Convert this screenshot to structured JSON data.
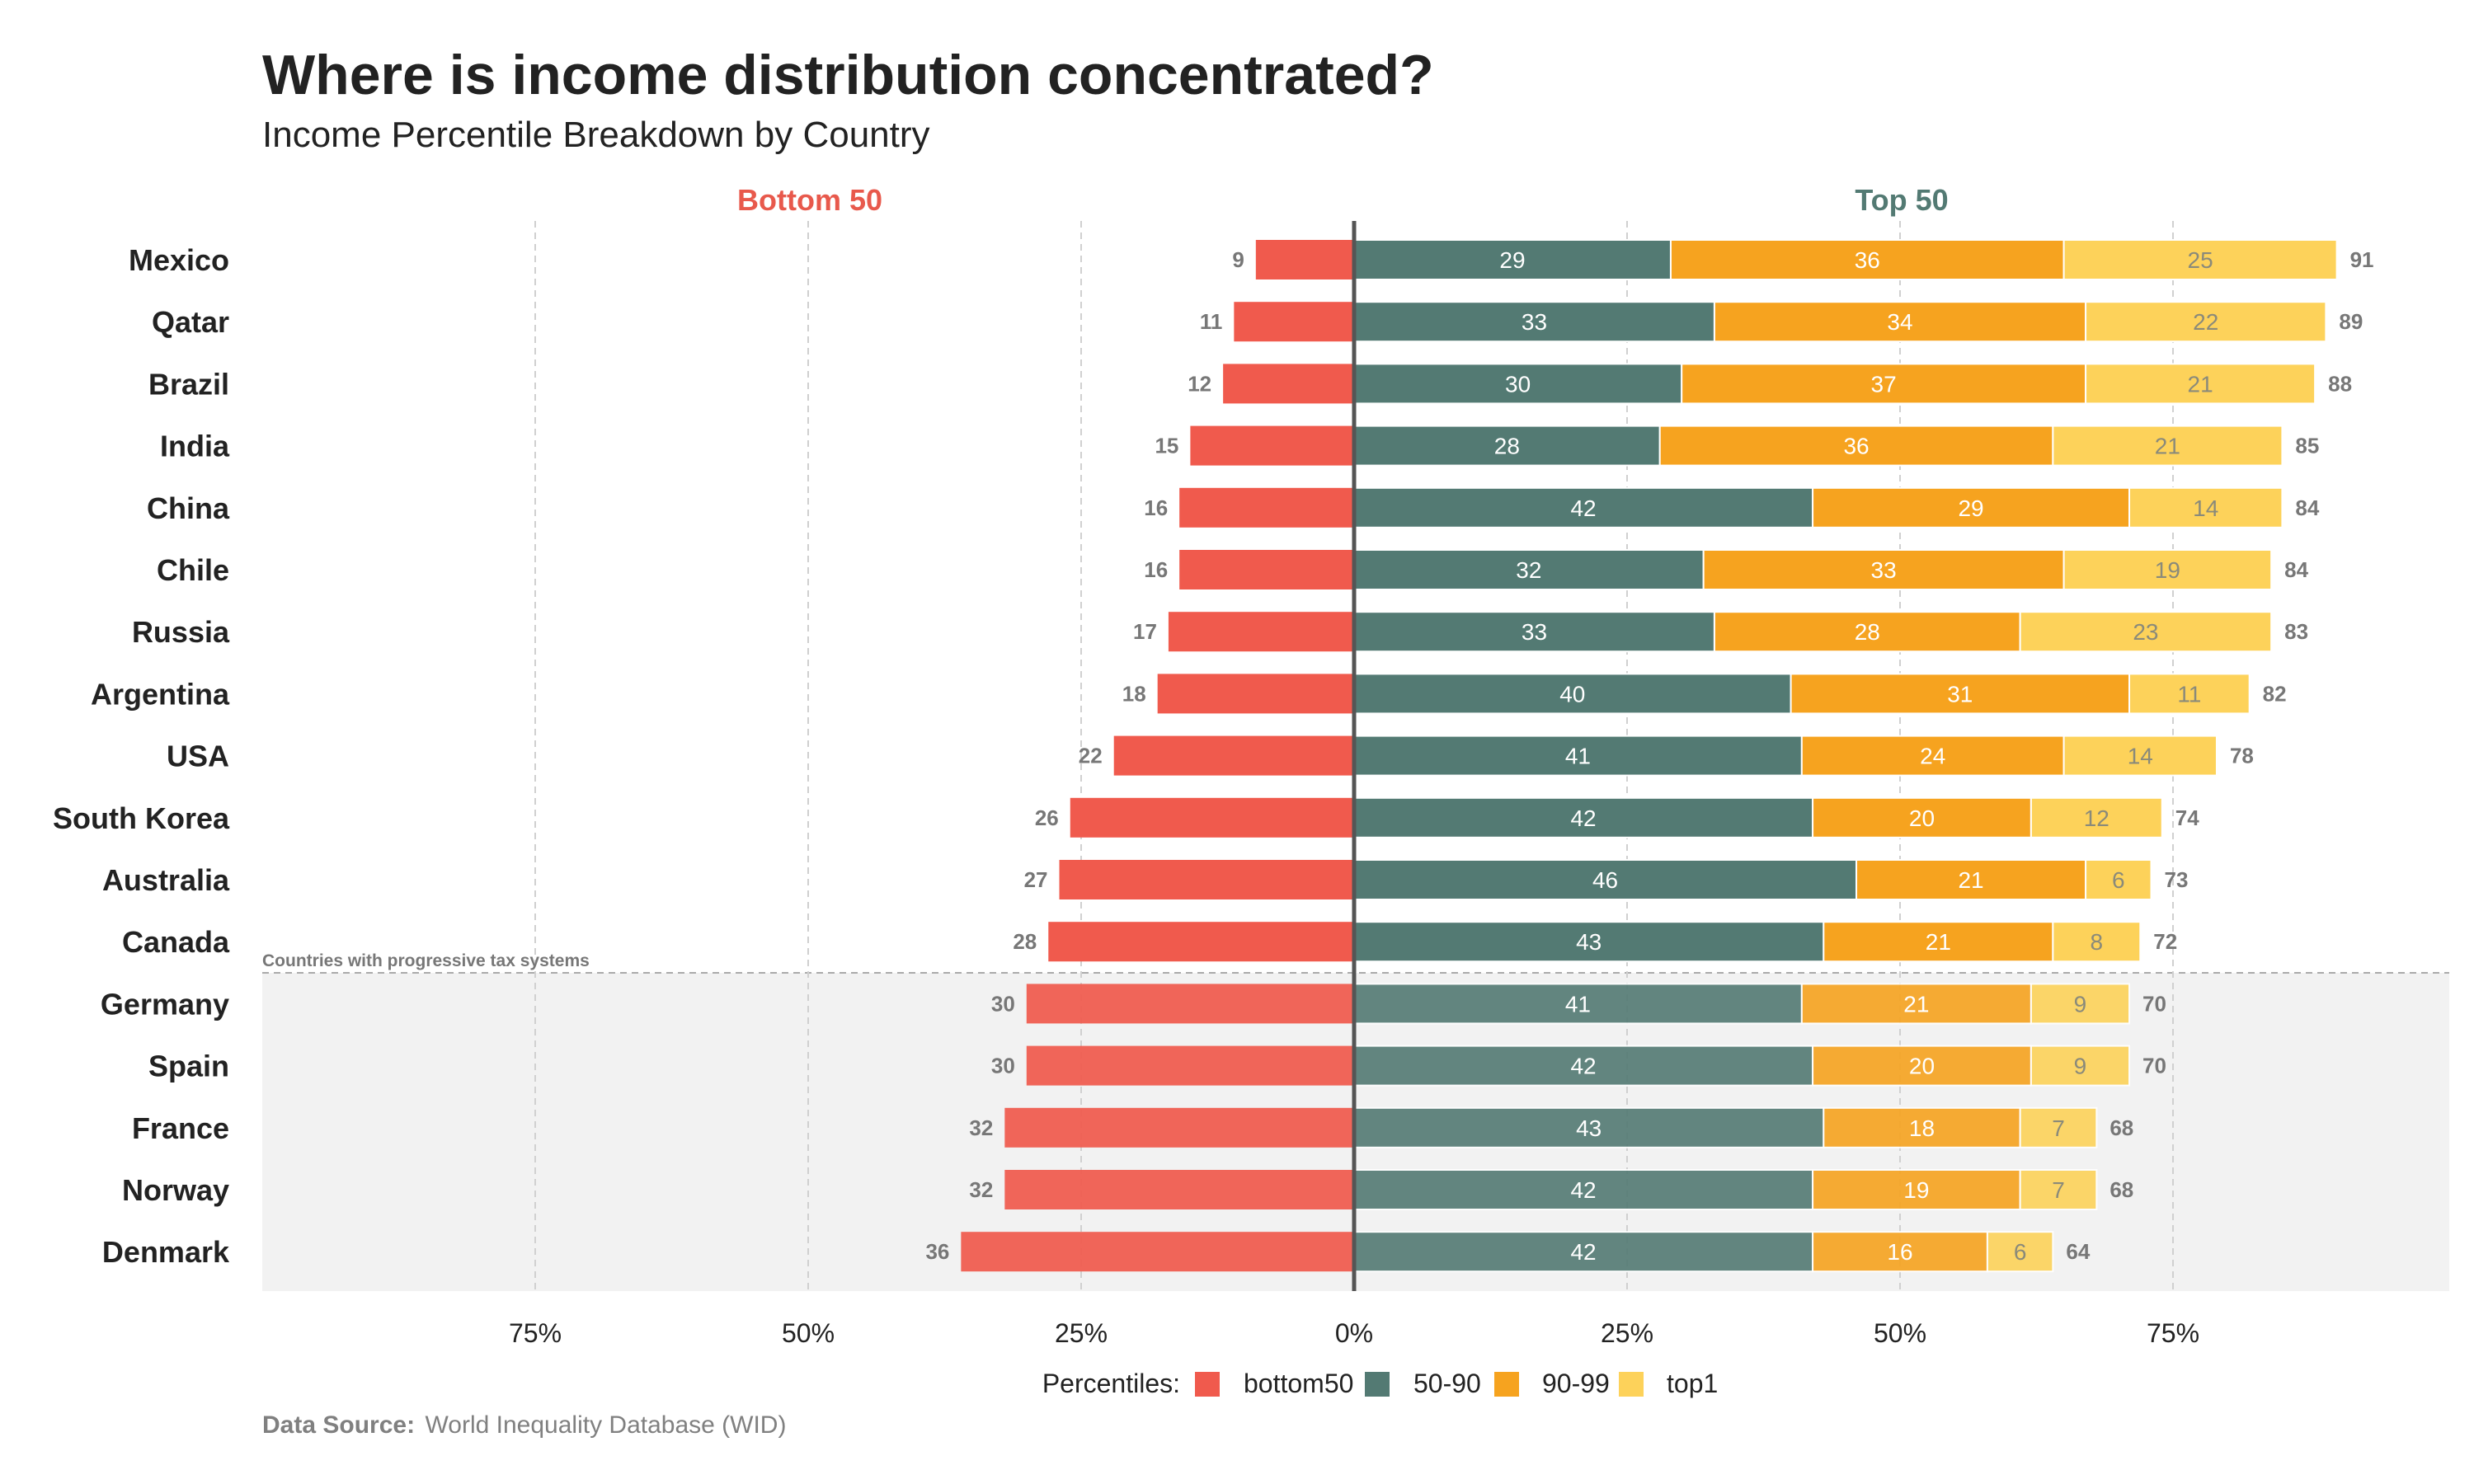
{
  "title": "Where is income distribution concentrated?",
  "subtitle": "Income Percentile Breakdown by Country",
  "side_labels": {
    "left": "Bottom 50",
    "right": "Top 50"
  },
  "progressive_note": "Countries with progressive tax systems",
  "legend_title": "Percentiles:",
  "source_label": "Data Source:",
  "source_text": "World Inequality Database (WID)",
  "colors": {
    "bottom50": "#F05A4D",
    "50-90": "#537A73",
    "90-99": "#F6A31F",
    "top1": "#FDD25A",
    "left_label": "#E8594C",
    "right_label": "#537A73",
    "shade": "#F2F2F2"
  },
  "chart_data": {
    "type": "bar",
    "orientation": "horizontal",
    "stacked": true,
    "diverging": true,
    "categories": [
      "Mexico",
      "Qatar",
      "Brazil",
      "India",
      "China",
      "Chile",
      "Russia",
      "Argentina",
      "USA",
      "South Korea",
      "Australia",
      "Canada",
      "Germany",
      "Spain",
      "France",
      "Norway",
      "Denmark"
    ],
    "series": [
      {
        "name": "bottom50",
        "values": [
          9,
          11,
          12,
          15,
          16,
          16,
          17,
          18,
          22,
          26,
          27,
          28,
          30,
          30,
          32,
          32,
          36
        ]
      },
      {
        "name": "50-90",
        "values": [
          29,
          33,
          30,
          28,
          42,
          32,
          33,
          40,
          41,
          42,
          46,
          43,
          41,
          42,
          43,
          42,
          42
        ]
      },
      {
        "name": "90-99",
        "values": [
          36,
          34,
          37,
          36,
          29,
          33,
          28,
          31,
          24,
          20,
          21,
          21,
          21,
          20,
          18,
          19,
          16
        ]
      },
      {
        "name": "top1",
        "values": [
          25,
          22,
          21,
          21,
          14,
          19,
          23,
          11,
          14,
          12,
          6,
          8,
          9,
          9,
          7,
          7,
          6
        ]
      }
    ],
    "top50_totals": [
      91,
      89,
      88,
      85,
      84,
      84,
      83,
      82,
      78,
      74,
      73,
      72,
      70,
      70,
      68,
      68,
      64
    ],
    "progressive_tax_countries": [
      "Germany",
      "Spain",
      "France",
      "Norway",
      "Denmark"
    ],
    "x_ticks": [
      "75%",
      "50%",
      "25%",
      "0%",
      "25%",
      "50%",
      "75%"
    ],
    "x_tick_values": [
      -75,
      -50,
      -25,
      0,
      25,
      50,
      75
    ],
    "xlim": [
      -100,
      100
    ],
    "grid": "vertical dashed",
    "legend_position": "bottom"
  }
}
